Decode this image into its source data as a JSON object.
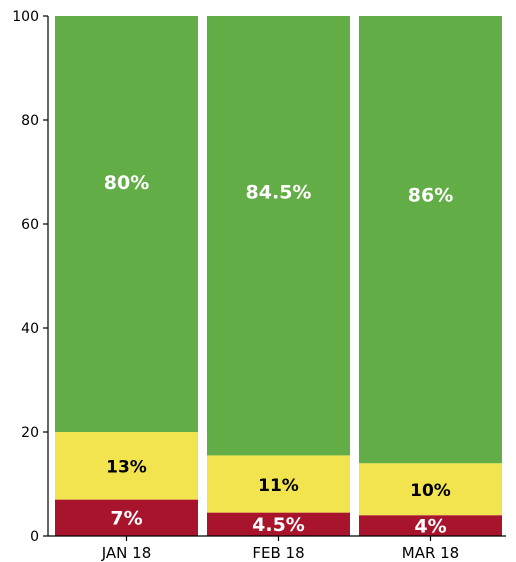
{
  "chart_data": {
    "type": "bar",
    "stacked": true,
    "categories": [
      "JAN 18",
      "FEB 18",
      "MAR 18"
    ],
    "series": [
      {
        "values": [
          7,
          4.5,
          4
        ],
        "labels": [
          "7%",
          "4.5%",
          "4%"
        ],
        "color": "#a8142c",
        "label_color": "#ffffff"
      },
      {
        "values": [
          13,
          11,
          10
        ],
        "labels": [
          "13%",
          "11%",
          "10%"
        ],
        "color": "#f2e44f",
        "label_color": "#000000"
      },
      {
        "values": [
          80,
          84.5,
          86
        ],
        "labels": [
          "80%",
          "84.5%",
          "86%"
        ],
        "color": "#62ad45",
        "label_color": "#ffffff"
      }
    ],
    "yticks": [
      "0",
      "20",
      "40",
      "60",
      "80",
      "100"
    ],
    "ylim": [
      0,
      100
    ],
    "grid": false,
    "legend": "none"
  }
}
